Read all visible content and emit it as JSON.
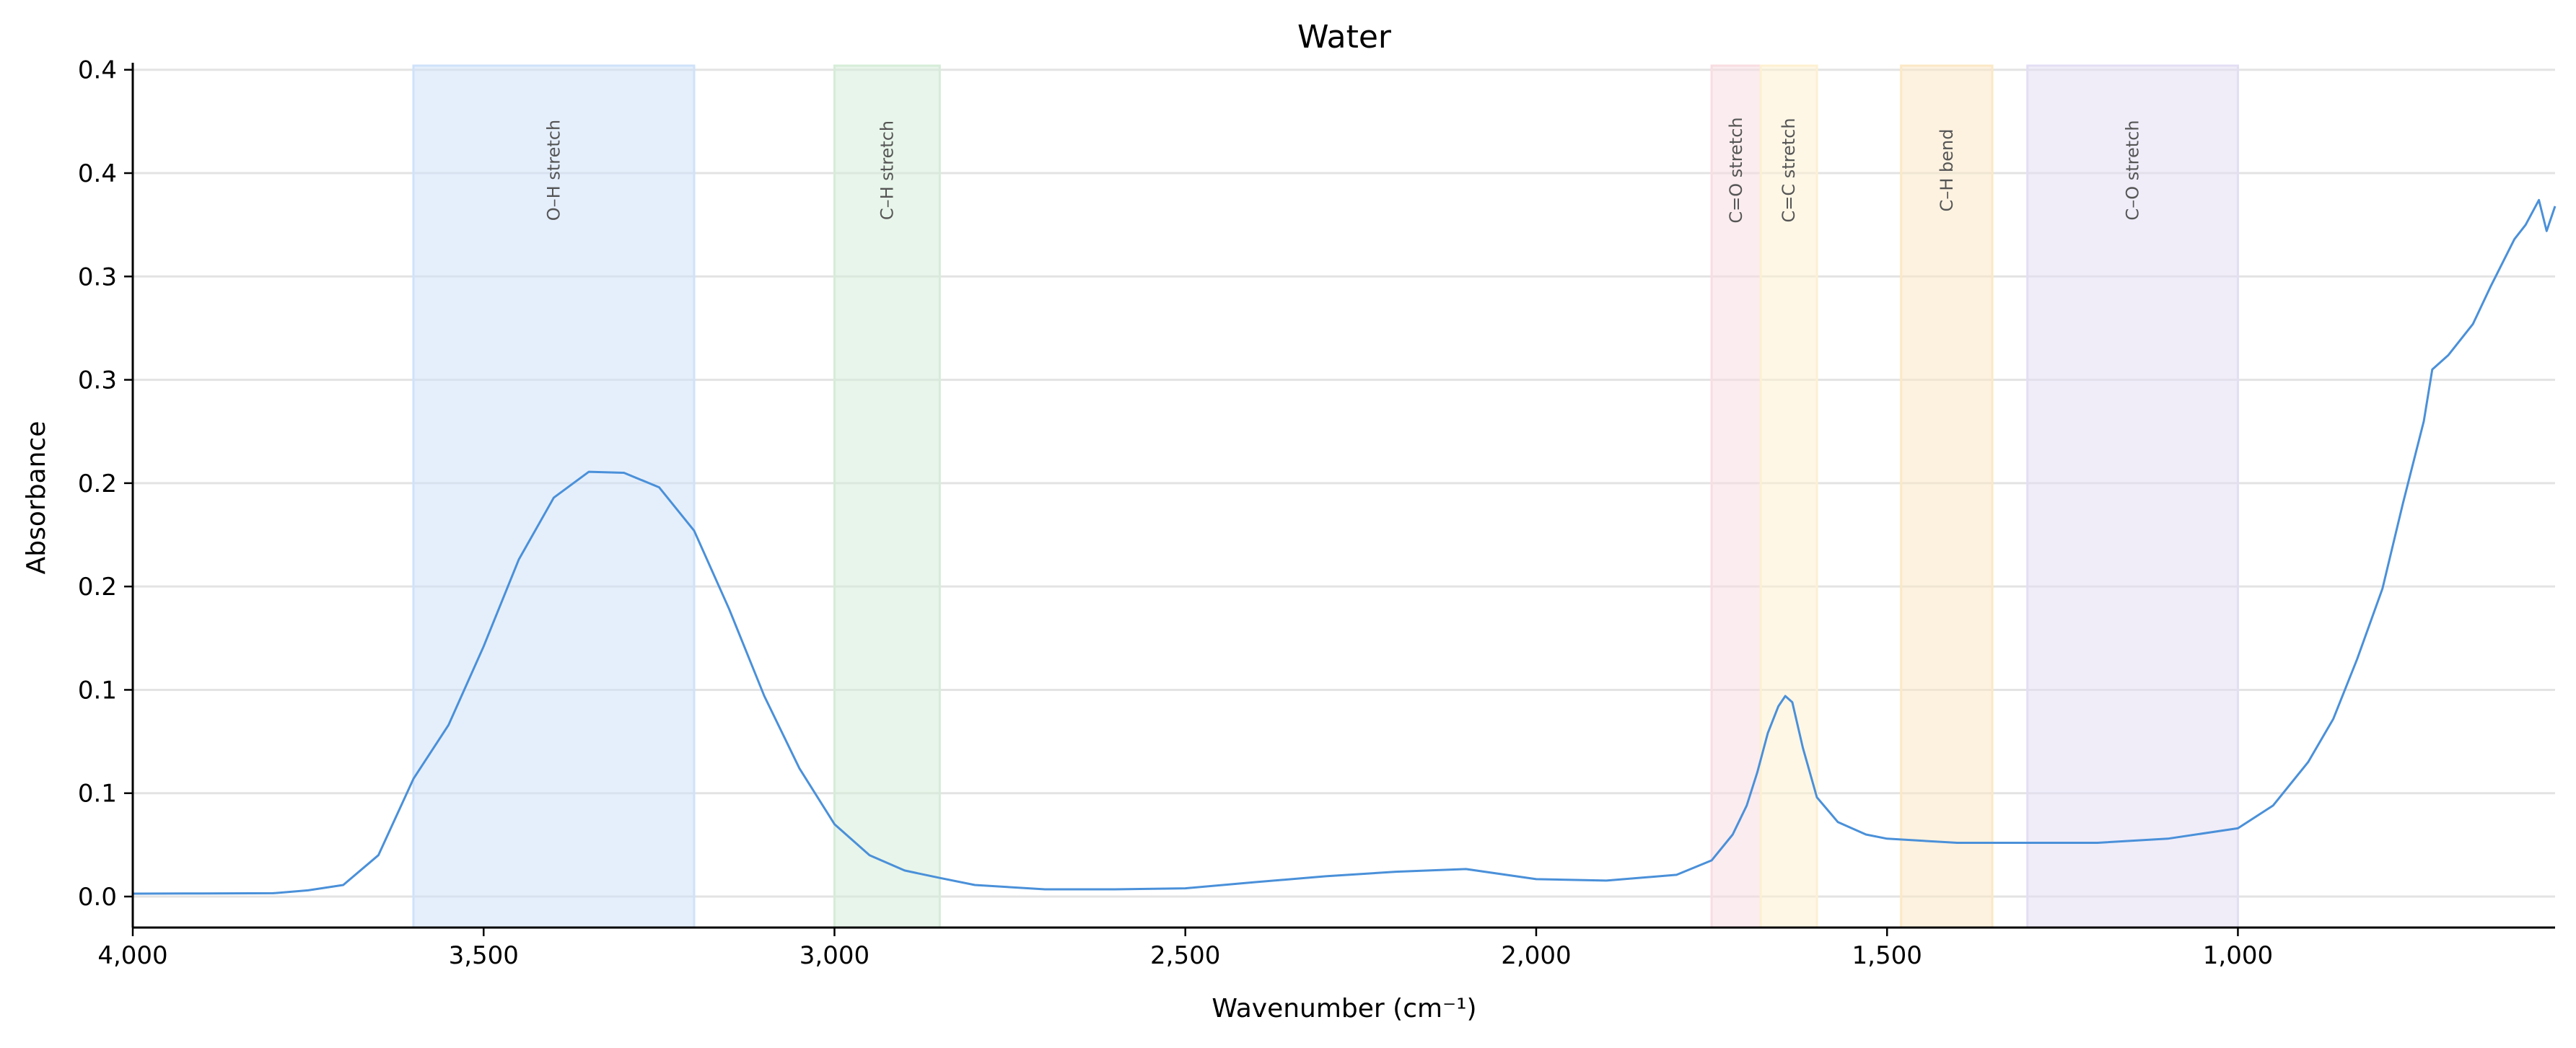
{
  "chart_data": {
    "type": "line",
    "title": "Water",
    "xlabel": "Wavenumber (cm⁻¹)",
    "ylabel": "Absorbance",
    "xlim": [
      4000,
      548
    ],
    "ylim": [
      -0.015,
      0.402
    ],
    "x_reversed": true,
    "grid": "horizontal",
    "x_ticks": [
      4000,
      3500,
      3000,
      2500,
      2000,
      1500,
      1000
    ],
    "x_tick_labels": [
      "4,000",
      "3,500",
      "3,000",
      "2,500",
      "2,000",
      "1,500",
      "1,000"
    ],
    "y_ticks": [
      0,
      0.05,
      0.1,
      0.15,
      0.2,
      0.25,
      0.3,
      0.35,
      0.4
    ],
    "y_tick_labels": [
      "0.0",
      "0.1",
      "0.1",
      "0.2",
      "0.2",
      "0.3",
      "0.3",
      "0.4",
      "0.4"
    ],
    "line_color": "#4a90d9",
    "bands": [
      {
        "label": "O–H stretch",
        "from": 3600,
        "to": 3200,
        "color": "#cfe2fa"
      },
      {
        "label": "C–H stretch",
        "from": 3000,
        "to": 2850,
        "color": "#d6ecd8"
      },
      {
        "label": "C=O stretch",
        "from": 1750,
        "to": 1680,
        "color": "#f8dde2"
      },
      {
        "label": "C=C stretch",
        "from": 1680,
        "to": 1600,
        "color": "#fdf0d2"
      },
      {
        "label": "C–H bend",
        "from": 1480,
        "to": 1350,
        "color": "#fbe8c6"
      },
      {
        "label": "C–O stretch",
        "from": 1300,
        "to": 1000,
        "color": "#e3def4"
      }
    ],
    "series": [
      {
        "x": [
          4000,
          3900,
          3800,
          3750,
          3700,
          3650,
          3600,
          3550,
          3500,
          3450,
          3400,
          3350,
          3300,
          3250,
          3200,
          3150,
          3100,
          3050,
          3000,
          2950,
          2900,
          2850,
          2800,
          2700,
          2600,
          2500,
          2400,
          2300,
          2200,
          2100,
          2000,
          1900,
          1800,
          1750,
          1720,
          1700,
          1685,
          1670,
          1655,
          1645,
          1635,
          1620,
          1600,
          1570,
          1530,
          1500,
          1400,
          1300,
          1200,
          1100,
          1000,
          950,
          900,
          864,
          830,
          794,
          765,
          735,
          723,
          700,
          665,
          640,
          606,
          590,
          571,
          560,
          548
        ],
        "y": [
          0.0014,
          0.0015,
          0.0016,
          0.003,
          0.0056,
          0.02,
          0.057,
          0.083,
          0.121,
          0.163,
          0.193,
          0.2055,
          0.205,
          0.198,
          0.177,
          0.139,
          0.097,
          0.062,
          0.035,
          0.02,
          0.0126,
          0.009,
          0.0056,
          0.0035,
          0.0035,
          0.004,
          0.007,
          0.0098,
          0.012,
          0.0133,
          0.0084,
          0.0077,
          0.0105,
          0.0175,
          0.03,
          0.044,
          0.06,
          0.079,
          0.092,
          0.097,
          0.094,
          0.072,
          0.048,
          0.036,
          0.03,
          0.028,
          0.026,
          0.026,
          0.026,
          0.028,
          0.033,
          0.044,
          0.065,
          0.086,
          0.115,
          0.149,
          0.19,
          0.23,
          0.255,
          0.262,
          0.277,
          0.295,
          0.318,
          0.325,
          0.337,
          0.322,
          0.334
        ]
      }
    ]
  }
}
